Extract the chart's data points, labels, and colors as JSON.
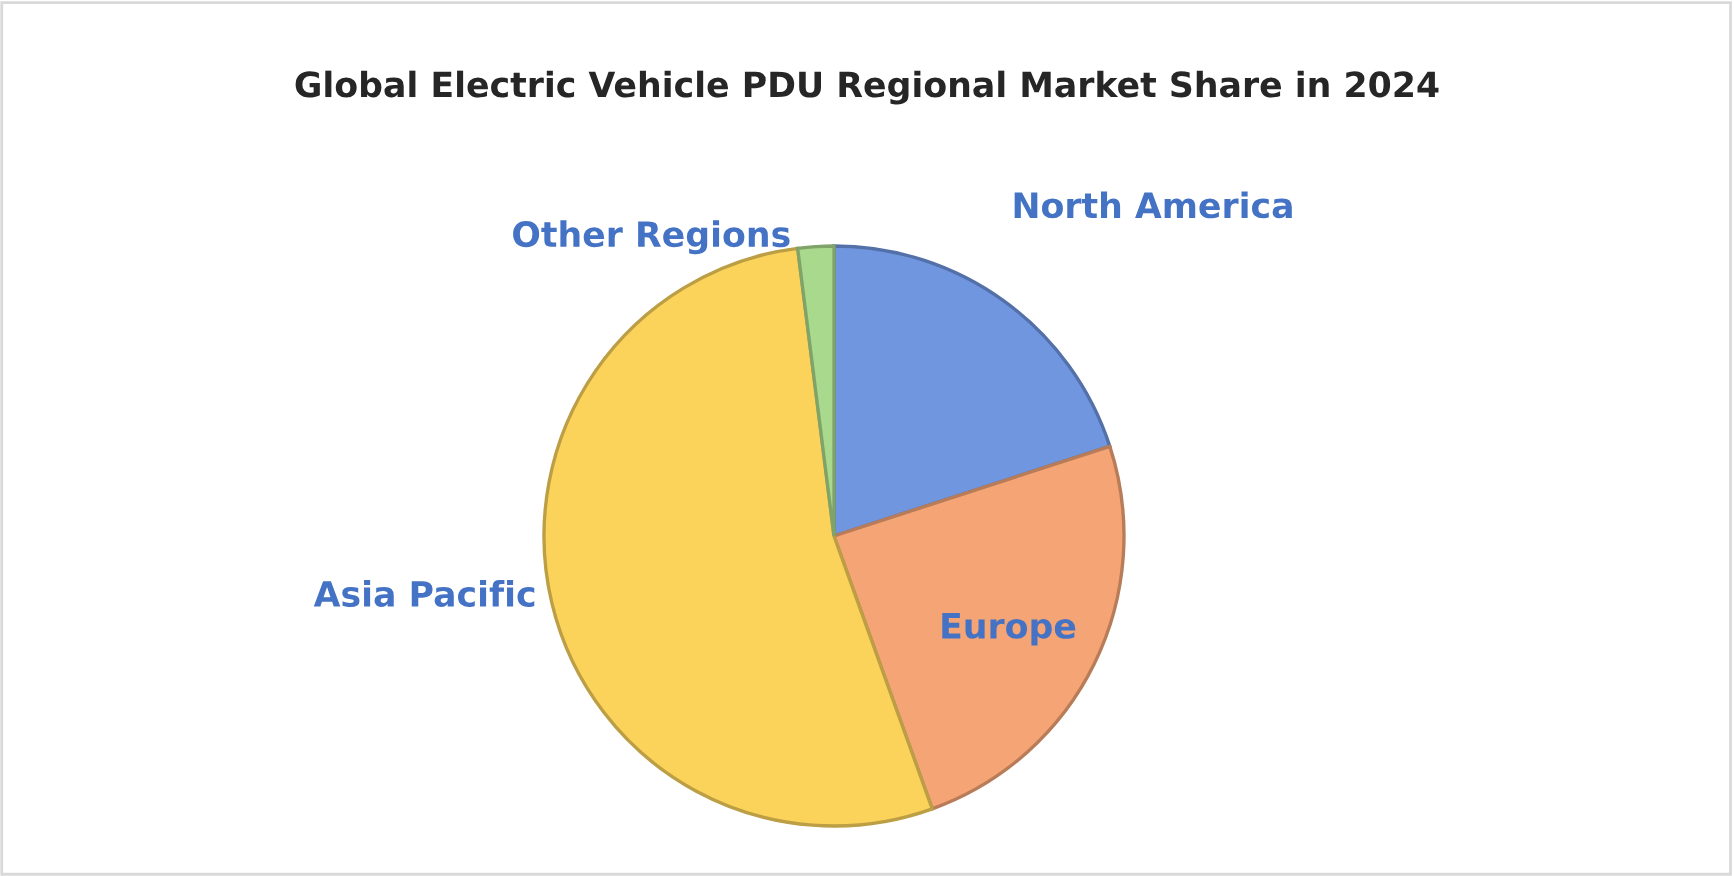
{
  "chart_data": {
    "type": "pie",
    "title": "Global Electric Vehicle PDU Regional Market Share in 2024",
    "categories": [
      "North America",
      "Europe",
      "Asia Pacific",
      "Other Regions"
    ],
    "values": [
      20,
      24.5,
      53.5,
      2
    ],
    "colors": [
      "#7096e0",
      "#f5a575",
      "#fbd35a",
      "#a9d98c"
    ],
    "legend": false
  }
}
